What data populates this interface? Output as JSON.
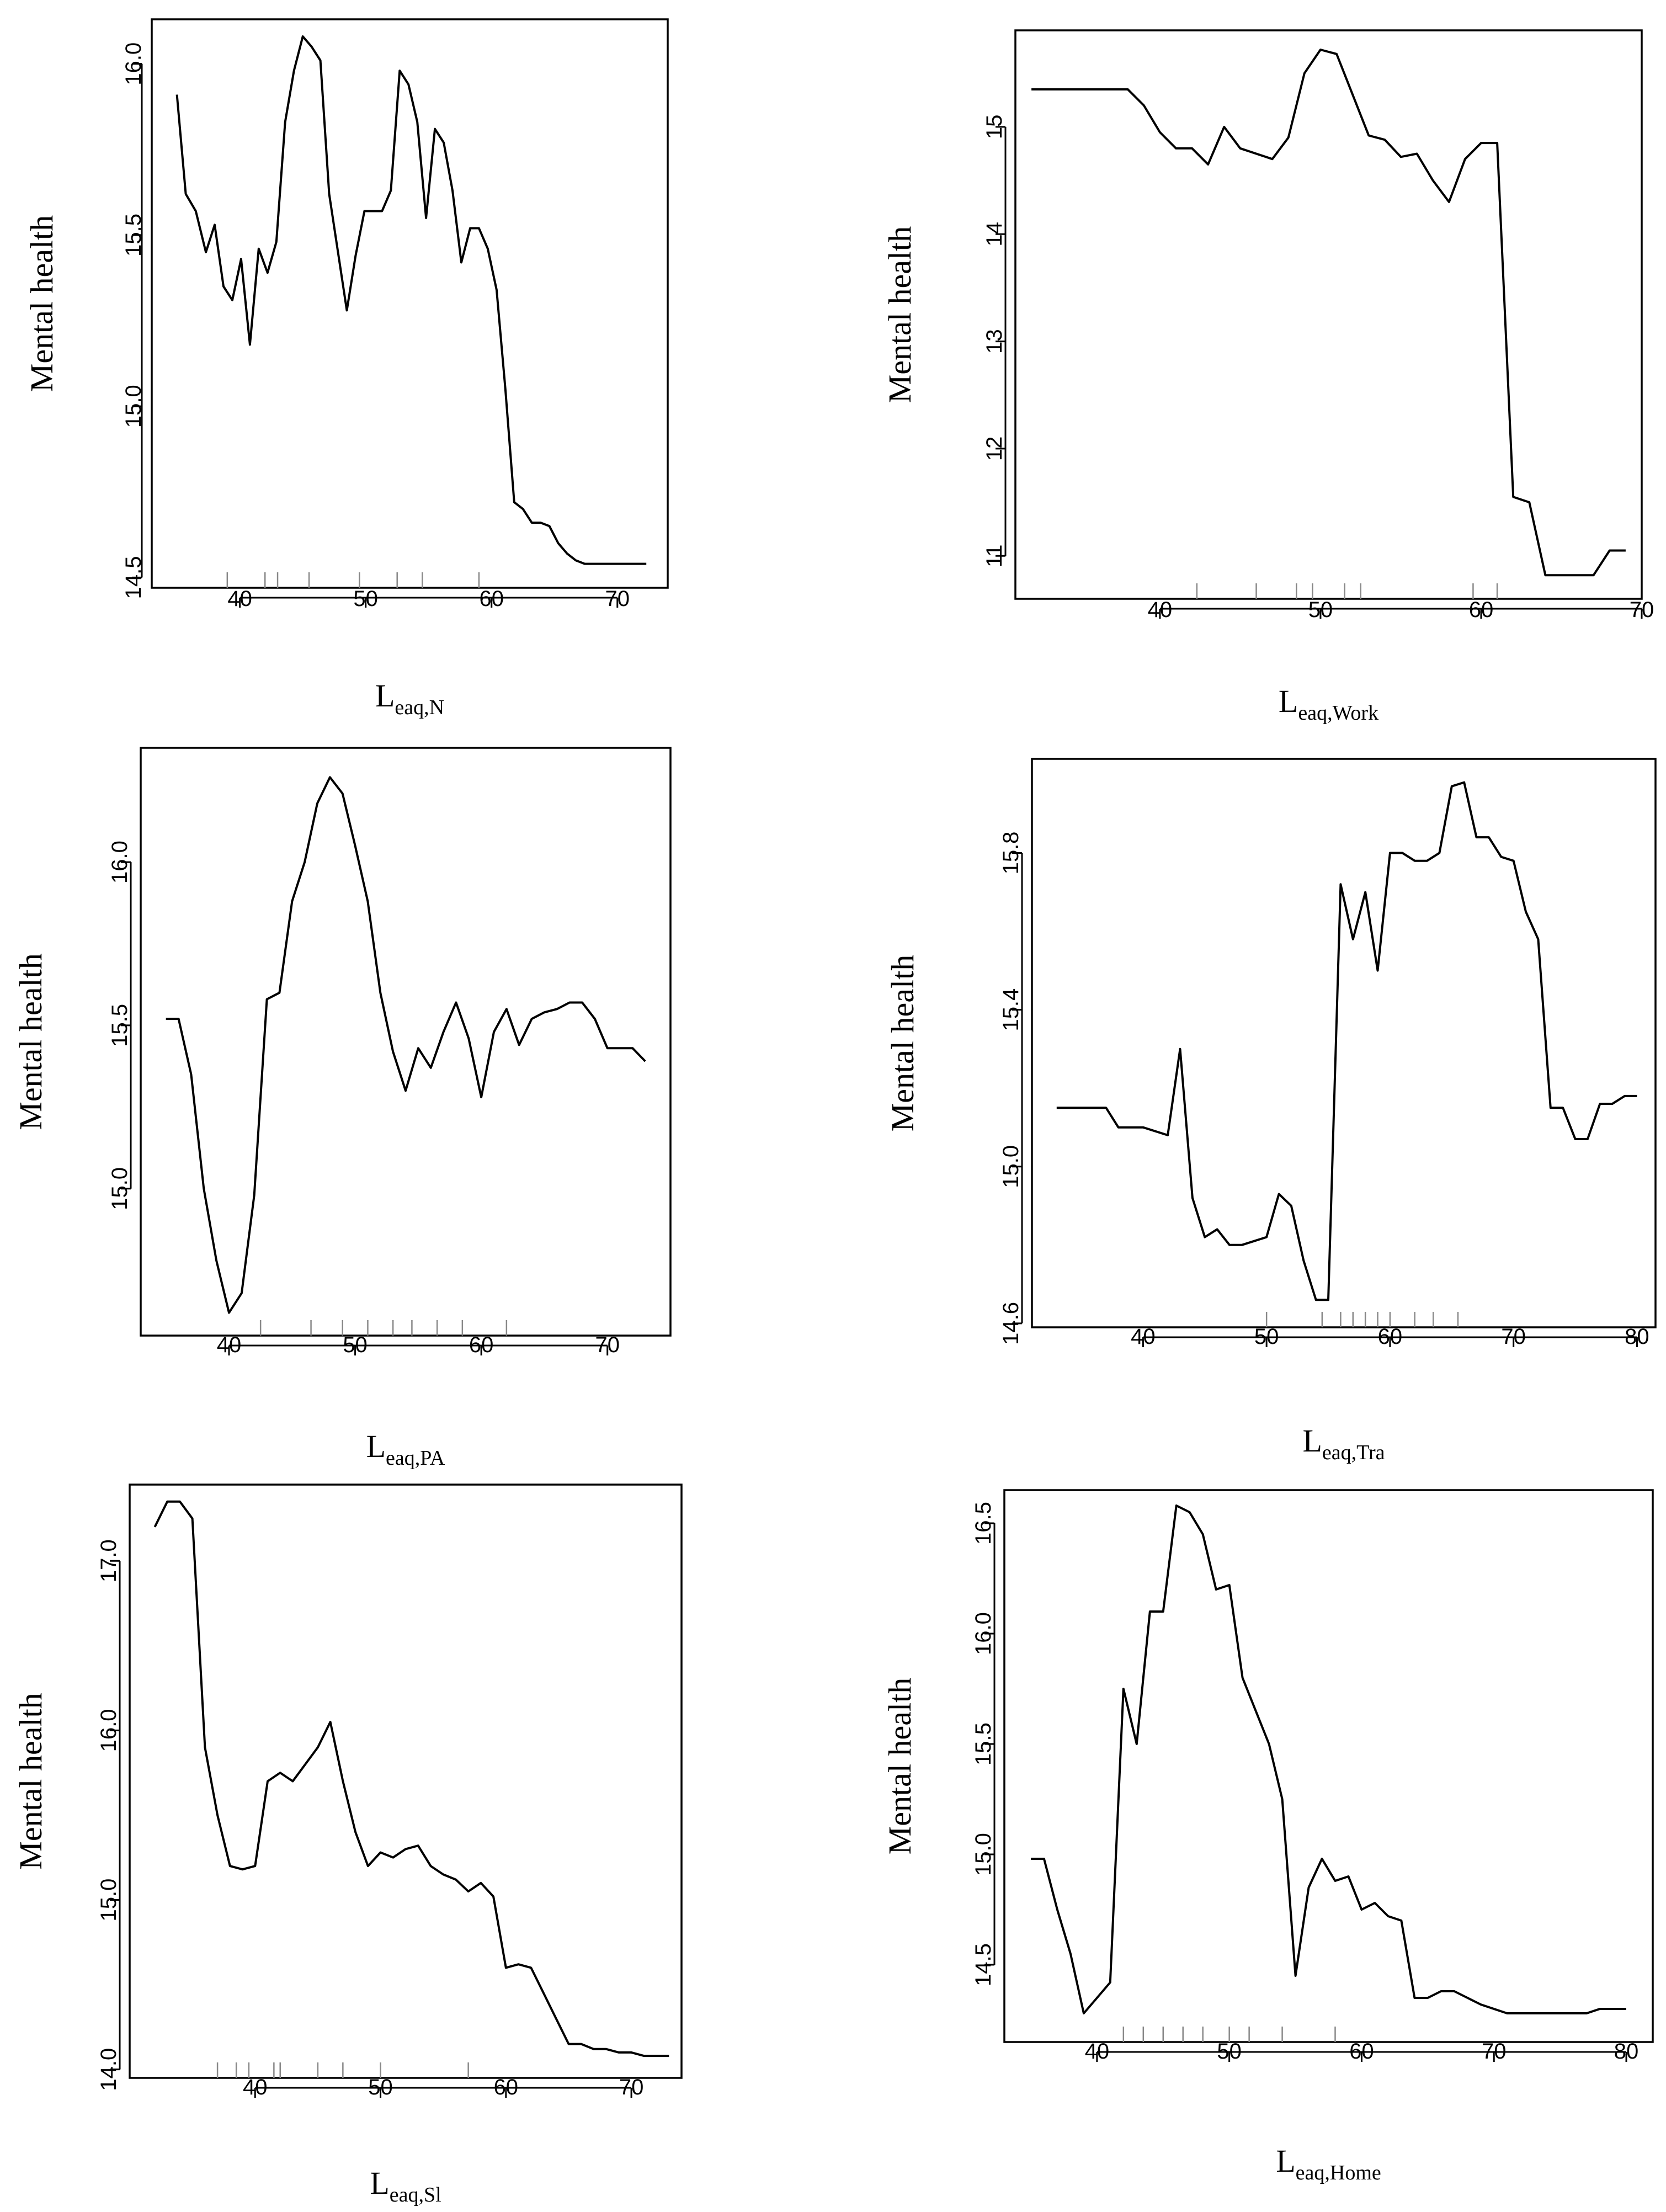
{
  "chart_data": [
    {
      "type": "line",
      "title": "",
      "ylabel": "Mental health",
      "xlabel_main": "L",
      "xlabel_sub": "eaq,N",
      "xlim": [
        33,
        74
      ],
      "ylim": [
        14.47,
        16.13
      ],
      "xticks": [
        40,
        50,
        60,
        70
      ],
      "yticks": [
        14.5,
        15.0,
        15.5,
        16.0
      ],
      "ytick_labels": [
        "14.5",
        "15.0",
        "15.5",
        "16.0"
      ],
      "x": [
        35,
        35.7,
        36.5,
        37.3,
        38.0,
        38.7,
        39.4,
        40.1,
        40.8,
        41.5,
        42.2,
        42.9,
        43.6,
        44.3,
        45.0,
        45.7,
        46.4,
        47.1,
        47.8,
        48.5,
        49.2,
        49.9,
        50.6,
        51.3,
        52.0,
        52.7,
        53.4,
        54.1,
        54.8,
        55.5,
        56.2,
        56.9,
        57.6,
        58.3,
        59.0,
        59.7,
        60.4,
        61.1,
        61.8,
        62.5,
        63.2,
        63.9,
        64.6,
        65.3,
        66.0,
        66.7,
        67.4,
        68.1,
        68.8,
        69.5,
        70.2,
        70.9,
        71.6,
        72.3
      ],
      "y": [
        15.91,
        15.62,
        15.57,
        15.45,
        15.53,
        15.35,
        15.31,
        15.43,
        15.18,
        15.46,
        15.39,
        15.48,
        15.83,
        15.98,
        16.08,
        16.05,
        16.01,
        15.62,
        15.45,
        15.28,
        15.44,
        15.57,
        15.57,
        15.57,
        15.63,
        15.98,
        15.94,
        15.83,
        15.55,
        15.81,
        15.77,
        15.63,
        15.42,
        15.52,
        15.52,
        15.46,
        15.34,
        15.05,
        14.72,
        14.7,
        14.66,
        14.66,
        14.65,
        14.6,
        14.57,
        14.55,
        14.54,
        14.54,
        14.54,
        14.54,
        14.54,
        14.54,
        14.54,
        14.54
      ],
      "rug": [
        39,
        42,
        43,
        45.5,
        49.5,
        52.5,
        54.5,
        59
      ]
    },
    {
      "type": "line",
      "title": "",
      "ylabel": "Mental health",
      "xlabel_main": "L",
      "xlabel_sub": "eaq,Work",
      "xlim": [
        31,
        70
      ],
      "ylim": [
        10.6,
        15.9
      ],
      "xticks": [
        40,
        50,
        60,
        70
      ],
      "yticks": [
        11,
        12,
        13,
        14,
        15
      ],
      "ytick_labels": [
        "11",
        "12",
        "13",
        "14",
        "15"
      ],
      "x": [
        32,
        34,
        36,
        37,
        38,
        39,
        40,
        41,
        42,
        43,
        44,
        45,
        46,
        47,
        48,
        49,
        50,
        51,
        52,
        53,
        54,
        55,
        56,
        57,
        58,
        59,
        60,
        61,
        62,
        63,
        64,
        65,
        66,
        67,
        68,
        69
      ],
      "y": [
        15.35,
        15.35,
        15.35,
        15.35,
        15.35,
        15.2,
        14.95,
        14.8,
        14.8,
        14.65,
        15.0,
        14.8,
        14.75,
        14.7,
        14.9,
        15.5,
        15.72,
        15.68,
        15.3,
        14.92,
        14.88,
        14.72,
        14.75,
        14.5,
        14.3,
        14.7,
        14.85,
        14.85,
        11.55,
        11.5,
        10.82,
        10.82,
        10.82,
        10.82,
        11.05,
        11.05
      ],
      "rug": [
        42.3,
        46,
        48.5,
        49.5,
        51.5,
        52.5,
        59.5,
        61
      ]
    },
    {
      "type": "line",
      "title": "",
      "ylabel": "Mental health",
      "xlabel_main": "L",
      "xlabel_sub": "eaq,PA",
      "xlim": [
        33,
        75
      ],
      "ylim": [
        14.55,
        16.35
      ],
      "xticks": [
        40,
        50,
        60,
        70
      ],
      "yticks": [
        15.0,
        15.5,
        16.0
      ],
      "ytick_labels": [
        "15.0",
        "15.5",
        "16.0"
      ],
      "x": [
        35,
        36,
        37,
        38,
        39,
        40,
        41,
        42,
        43,
        44,
        45,
        46,
        47,
        48,
        49,
        50,
        51,
        52,
        53,
        54,
        55,
        56,
        57,
        58,
        59,
        60,
        61,
        62,
        63,
        64,
        65,
        66,
        67,
        68,
        69,
        70,
        71,
        72,
        73
      ],
      "y": [
        15.52,
        15.52,
        15.35,
        15.0,
        14.78,
        14.62,
        14.68,
        14.98,
        15.58,
        15.6,
        15.88,
        16.0,
        16.18,
        16.26,
        16.21,
        16.05,
        15.88,
        15.6,
        15.42,
        15.3,
        15.43,
        15.37,
        15.48,
        15.57,
        15.46,
        15.28,
        15.48,
        15.55,
        15.44,
        15.52,
        15.54,
        15.55,
        15.57,
        15.57,
        15.52,
        15.43,
        15.43,
        15.43,
        15.39
      ],
      "rug": [
        42.5,
        46.5,
        49,
        51,
        53,
        54.5,
        56.5,
        58.5,
        62
      ]
    },
    {
      "type": "line",
      "title": "",
      "ylabel": "Mental health",
      "xlabel_main": "L",
      "xlabel_sub": "eaq,Tra",
      "xlim": [
        31,
        81.5
      ],
      "ylim": [
        14.59,
        16.04
      ],
      "xticks": [
        40,
        50,
        60,
        70,
        80
      ],
      "yticks": [
        14.6,
        15.0,
        15.4,
        15.8
      ],
      "ytick_labels": [
        "14.6",
        "15.0",
        "15.4",
        "15.8"
      ],
      "x": [
        33,
        35,
        37,
        38,
        40,
        42,
        43,
        44,
        45,
        46,
        47,
        48,
        49,
        50,
        51,
        52,
        53,
        54,
        55,
        56,
        57,
        58,
        59,
        60,
        61,
        62,
        63,
        64,
        65,
        66,
        67,
        68,
        69,
        70,
        71,
        72,
        73,
        74,
        75,
        76,
        77,
        78,
        79,
        80
      ],
      "y": [
        15.15,
        15.15,
        15.15,
        15.1,
        15.1,
        15.08,
        15.3,
        14.92,
        14.82,
        14.84,
        14.8,
        14.8,
        14.81,
        14.82,
        14.93,
        14.9,
        14.76,
        14.66,
        14.66,
        15.72,
        15.58,
        15.7,
        15.5,
        15.8,
        15.8,
        15.78,
        15.78,
        15.8,
        15.97,
        15.98,
        15.84,
        15.84,
        15.79,
        15.78,
        15.65,
        15.58,
        15.15,
        15.15,
        15.07,
        15.07,
        15.16,
        15.16,
        15.18,
        15.18
      ],
      "rug": [
        50,
        54.5,
        56,
        57,
        58,
        59,
        60,
        62,
        63.5,
        65.5
      ]
    },
    {
      "type": "line",
      "title": "",
      "ylabel": "Mental health",
      "xlabel_main": "L",
      "xlabel_sub": "eaq,Sl",
      "xlim": [
        30,
        74
      ],
      "ylim": [
        13.95,
        17.45
      ],
      "xticks": [
        40,
        50,
        60,
        70
      ],
      "yticks": [
        14.0,
        15.0,
        16.0,
        17.0
      ],
      "ytick_labels": [
        "14.0",
        "15.0",
        "16.0",
        "17.0"
      ],
      "x": [
        32,
        33,
        34,
        35,
        36,
        37,
        38,
        39,
        40,
        41,
        42,
        43,
        44,
        45,
        46,
        47,
        48,
        49,
        50,
        51,
        52,
        53,
        54,
        55,
        56,
        57,
        58,
        59,
        60,
        61,
        62,
        63,
        64,
        65,
        66,
        67,
        68,
        69,
        70,
        71,
        72,
        73
      ],
      "y": [
        17.2,
        17.35,
        17.35,
        17.25,
        15.9,
        15.5,
        15.2,
        15.18,
        15.2,
        15.7,
        15.75,
        15.7,
        15.8,
        15.9,
        16.05,
        15.7,
        15.4,
        15.2,
        15.28,
        15.25,
        15.3,
        15.32,
        15.2,
        15.15,
        15.12,
        15.05,
        15.1,
        15.02,
        14.6,
        14.62,
        14.6,
        14.45,
        14.3,
        14.15,
        14.15,
        14.12,
        14.12,
        14.1,
        14.1,
        14.08,
        14.08,
        14.08
      ],
      "rug": [
        37,
        38.5,
        39.5,
        41.5,
        42,
        45,
        47,
        50,
        57
      ]
    },
    {
      "type": "line",
      "title": "",
      "ylabel": "Mental health",
      "xlabel_main": "L",
      "xlabel_sub": "eaq,Home",
      "xlim": [
        33,
        82
      ],
      "ylim": [
        14.15,
        16.65
      ],
      "xticks": [
        40,
        50,
        60,
        70,
        80
      ],
      "yticks": [
        14.5,
        15.0,
        15.5,
        16.0,
        16.5
      ],
      "ytick_labels": [
        "14.5",
        "15.0",
        "15.5",
        "16.0",
        "16.5"
      ],
      "x": [
        35,
        36,
        37,
        38,
        39,
        40,
        41,
        42,
        43,
        44,
        45,
        46,
        47,
        48,
        49,
        50,
        51,
        52,
        53,
        54,
        55,
        56,
        57,
        58,
        59,
        60,
        61,
        62,
        63,
        64,
        65,
        66,
        67,
        68,
        69,
        70,
        71,
        72,
        73,
        74,
        75,
        76,
        77,
        78,
        79,
        80
      ],
      "y": [
        14.98,
        14.98,
        14.75,
        14.55,
        14.28,
        14.35,
        14.42,
        15.75,
        15.5,
        16.1,
        16.1,
        16.58,
        16.55,
        16.45,
        16.2,
        16.22,
        15.8,
        15.65,
        15.5,
        15.25,
        14.45,
        14.85,
        14.98,
        14.88,
        14.9,
        14.75,
        14.78,
        14.72,
        14.7,
        14.35,
        14.35,
        14.38,
        14.38,
        14.35,
        14.32,
        14.3,
        14.28,
        14.28,
        14.28,
        14.28,
        14.28,
        14.28,
        14.28,
        14.3,
        14.3,
        14.3
      ],
      "rug": [
        42,
        43.5,
        45,
        46.5,
        48,
        50,
        51.5,
        54,
        58
      ]
    }
  ]
}
